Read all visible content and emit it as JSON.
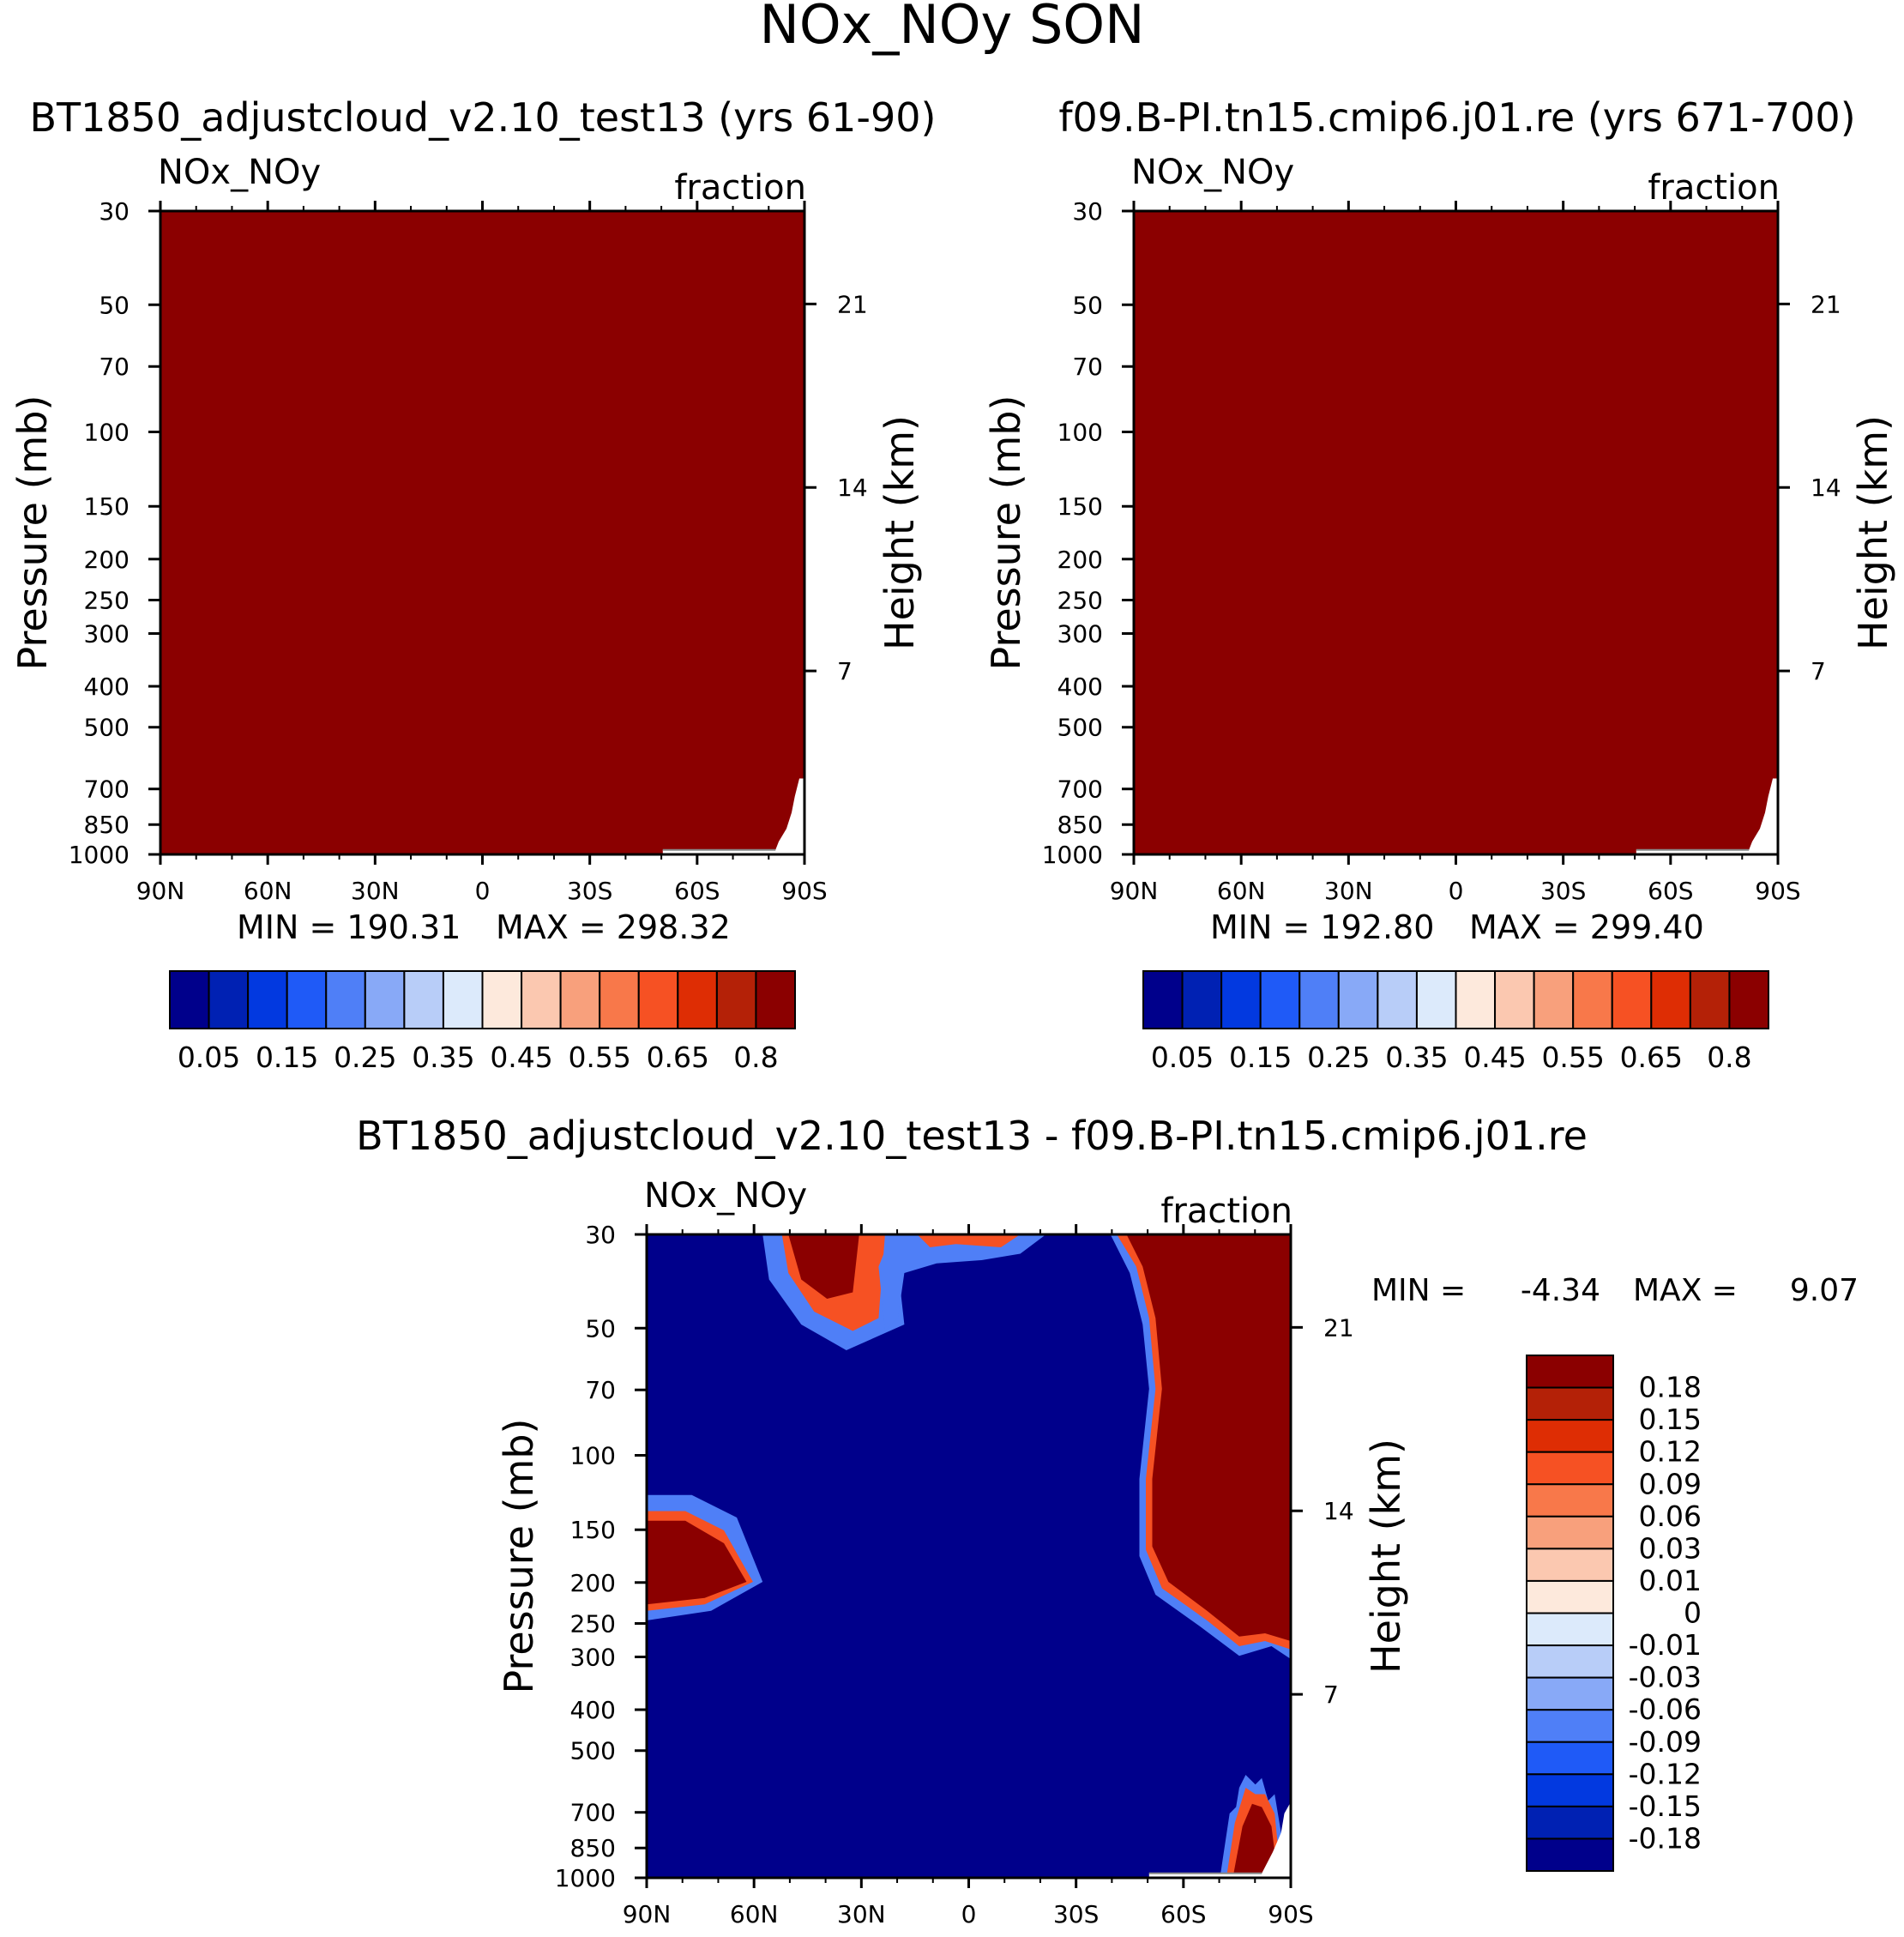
{
  "page_title": "NOx_NOy SON",
  "colors": {
    "plot_fill": "#8b0000",
    "diff_background": "#00008b",
    "abs_palette": [
      "#00008b",
      "#0021b3",
      "#0239e0",
      "#1f5af7",
      "#4f7ff7",
      "#88a9f7",
      "#b8cdf8",
      "#dceafb",
      "#fde9dc",
      "#fbc8b0",
      "#f8a07c",
      "#f8784a",
      "#f65123",
      "#de2d04",
      "#b42107",
      "#8b0000"
    ],
    "diff_palette": [
      "#8b0000",
      "#b42107",
      "#de2d04",
      "#f65123",
      "#f8784a",
      "#f8a07c",
      "#fbc8b0",
      "#fde9dc",
      "#dceafb",
      "#b8cdf8",
      "#88a9f7",
      "#4f7ff7",
      "#1f5af7",
      "#0239e0",
      "#0021b3",
      "#00008b"
    ]
  },
  "chart_data": [
    {
      "type": "heatmap",
      "panel": "top-left",
      "title": "BT1850_adjustcloud_v2.10_test13 (yrs 61-90)",
      "left_label": "NOx_NOy",
      "right_label": "fraction",
      "ylabel": "Pressure (mb)",
      "right_ylabel": "Height (km)",
      "x_ticks": [
        "90N",
        "60N",
        "30N",
        "0",
        "30S",
        "60S",
        "90S"
      ],
      "x_range": [
        90,
        -90
      ],
      "y_ticks": [
        30,
        50,
        70,
        100,
        150,
        200,
        250,
        300,
        400,
        500,
        700,
        850,
        1000
      ],
      "y_range": [
        30,
        1000
      ],
      "height_ticks": [
        21,
        14,
        7
      ],
      "min_label": "MIN = 190.31",
      "max_label": "MAX = 298.32",
      "min": 190.31,
      "max": 298.32,
      "colorbar_labels": [
        "0.05",
        "0.15",
        "0.25",
        "0.35",
        "0.45",
        "0.55",
        "0.65",
        "0.8"
      ],
      "field_description": "uniform maximum-color fill (> 0.8)"
    },
    {
      "type": "heatmap",
      "panel": "top-right",
      "title": "f09.B-PI.tn15.cmip6.j01.re (yrs 671-700)",
      "left_label": "NOx_NOy",
      "right_label": "fraction",
      "ylabel": "Pressure (mb)",
      "right_ylabel": "Height (km)",
      "x_ticks": [
        "90N",
        "60N",
        "30N",
        "0",
        "30S",
        "60S",
        "90S"
      ],
      "x_range": [
        90,
        -90
      ],
      "y_ticks": [
        30,
        50,
        70,
        100,
        150,
        200,
        250,
        300,
        400,
        500,
        700,
        850,
        1000
      ],
      "y_range": [
        30,
        1000
      ],
      "height_ticks": [
        21,
        14,
        7
      ],
      "min_label": "MIN = 192.80",
      "max_label": "MAX = 299.40",
      "min": 192.8,
      "max": 299.4,
      "colorbar_labels": [
        "0.05",
        "0.15",
        "0.25",
        "0.35",
        "0.45",
        "0.55",
        "0.65",
        "0.8"
      ],
      "field_description": "uniform maximum-color fill (> 0.8)"
    },
    {
      "type": "heatmap",
      "panel": "bottom-difference",
      "title": "BT1850_adjustcloud_v2.10_test13 - f09.B-PI.tn15.cmip6.j01.re",
      "left_label": "NOx_NOy",
      "right_label": "fraction",
      "ylabel": "Pressure (mb)",
      "right_ylabel": "Height (km)",
      "x_ticks": [
        "90N",
        "60N",
        "30N",
        "0",
        "30S",
        "60S",
        "90S"
      ],
      "x_range": [
        90,
        -90
      ],
      "y_ticks": [
        30,
        50,
        70,
        100,
        150,
        200,
        250,
        300,
        400,
        500,
        700,
        850,
        1000
      ],
      "y_range": [
        30,
        1000
      ],
      "height_ticks": [
        21,
        14,
        7
      ],
      "min_label": "MIN =",
      "min_value": "-4.34",
      "max_label": "MAX =",
      "max_value": "9.07",
      "min": -4.34,
      "max": 9.07,
      "colorbar_labels": [
        "0.18",
        "0.15",
        "0.12",
        "0.09",
        "0.06",
        "0.03",
        "0.01",
        "0",
        "-0.01",
        "-0.03",
        "-0.06",
        "-0.09",
        "-0.12",
        "-0.15",
        "-0.18"
      ],
      "field_description": "mostly strongly negative (< -0.18); strongly positive regions near 30-45N above 50 mb, 60-90N at 150-250 mb, south of 50S above 300 mb, and 65-85S near the surface"
    }
  ]
}
